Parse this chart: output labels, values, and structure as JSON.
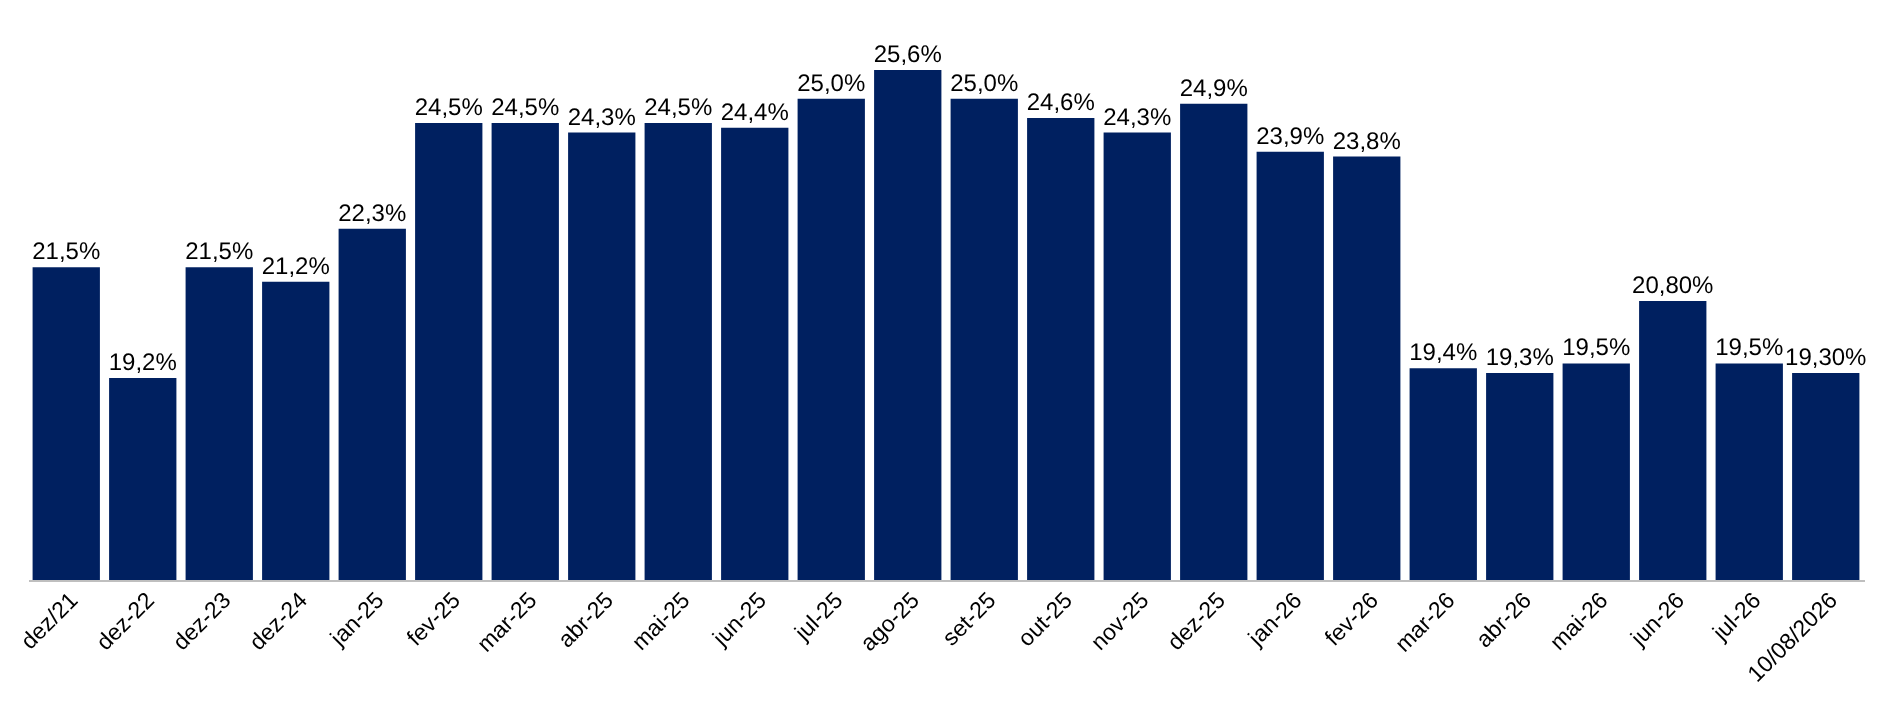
{
  "chart_data": {
    "type": "bar",
    "categories": [
      "dez/21",
      "dez-22",
      "dez-23",
      "dez-24",
      "jan-25",
      "fev-25",
      "mar-25",
      "abr-25",
      "mai-25",
      "jun-25",
      "jul-25",
      "ago-25",
      "set-25",
      "out-25",
      "nov-25",
      "dez-25",
      "jan-26",
      "fev-26",
      "mar-26",
      "abr-26",
      "mai-26",
      "jun-26",
      "jul-26",
      "10/08/2026"
    ],
    "values": [
      21.5,
      19.2,
      21.5,
      21.2,
      22.3,
      24.5,
      24.5,
      24.3,
      24.5,
      24.4,
      25.0,
      25.6,
      25.0,
      24.6,
      24.3,
      24.9,
      23.9,
      23.8,
      19.4,
      19.3,
      19.5,
      20.8,
      19.5,
      19.3
    ],
    "value_labels": [
      "21,5%",
      "19,2%",
      "21,5%",
      "21,2%",
      "22,3%",
      "24,5%",
      "24,5%",
      "24,3%",
      "24,5%",
      "24,4%",
      "25,0%",
      "25,6%",
      "25,0%",
      "24,6%",
      "24,3%",
      "24,9%",
      "23,9%",
      "23,8%",
      "19,4%",
      "19,3%",
      "19,5%",
      "20,80%",
      "19,5%",
      "19,30%"
    ],
    "color": "#002060",
    "ylim": [
      15,
      25.6
    ],
    "tick_labels": "x"
  }
}
